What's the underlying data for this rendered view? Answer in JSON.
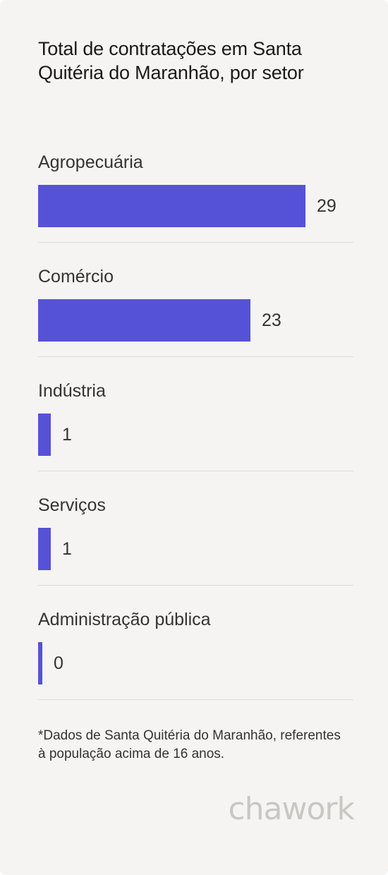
{
  "chart_data": {
    "type": "bar",
    "orientation": "horizontal",
    "title": "Total de contratações em Santa Quitéria do Maranhão, por setor",
    "categories": [
      "Agropecuária",
      "Comércio",
      "Indústria",
      "Serviços",
      "Administração pública"
    ],
    "values": [
      29,
      23,
      1,
      1,
      0
    ],
    "value_labels": [
      "29",
      "23",
      "1",
      "1",
      "0"
    ],
    "xlim": [
      0,
      29
    ],
    "grid": false,
    "bar_color": "#5652d8",
    "footnote": "*Dados de Santa Quitéria do Maranhão, referentes à população acima de 16 anos."
  },
  "brand": "chawork",
  "colors": {
    "background": "#f5f4f2",
    "bar": "#5652d8",
    "divider": "#dddbd7",
    "brand": "#c9c7c2"
  }
}
